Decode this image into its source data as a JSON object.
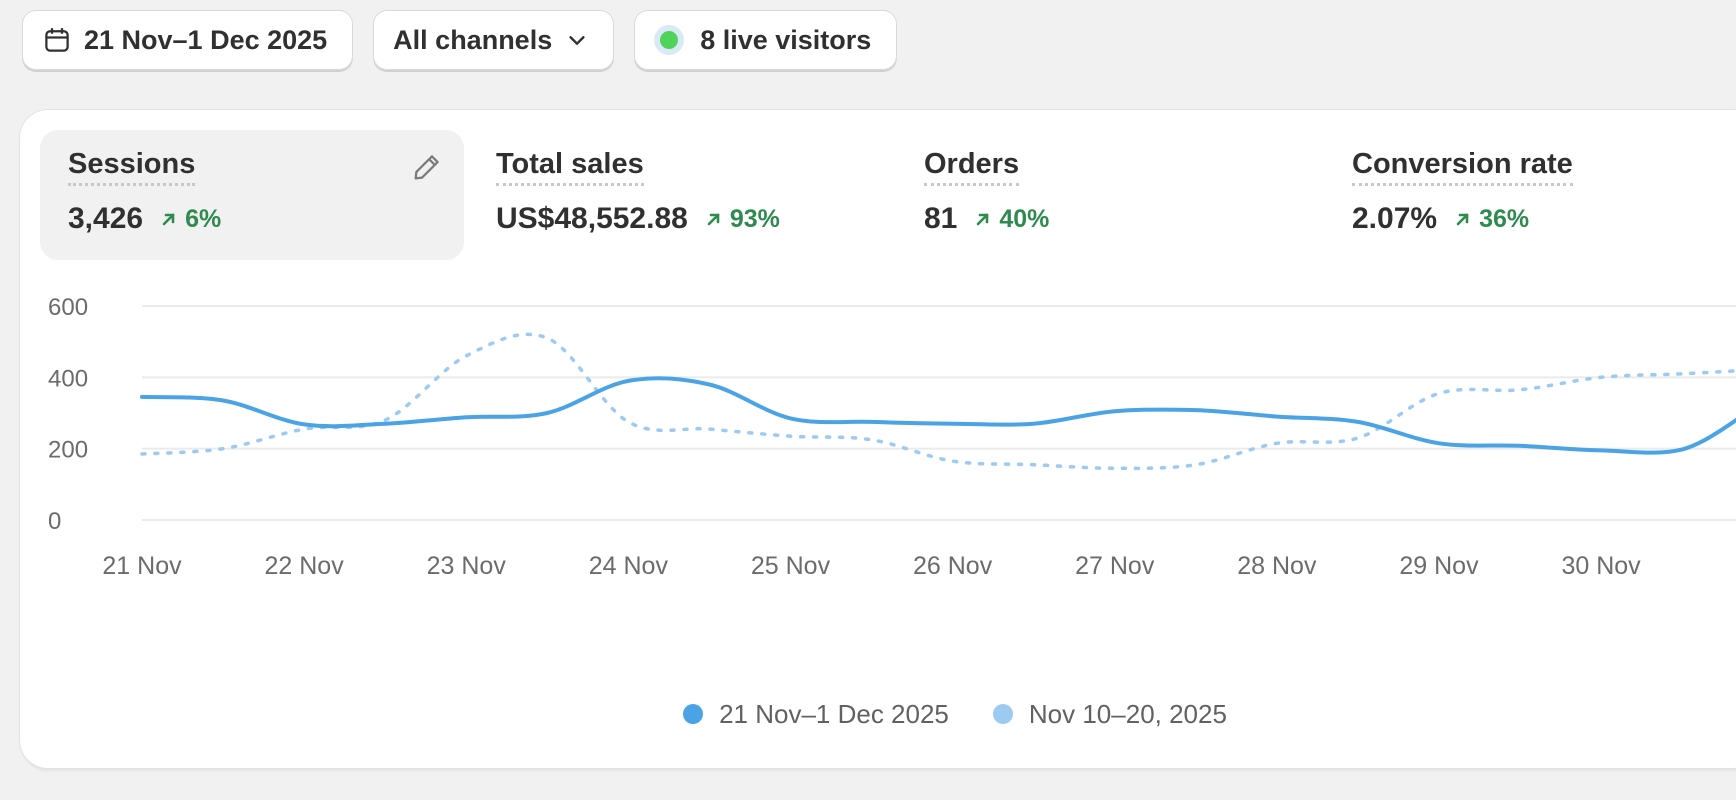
{
  "toolbar": {
    "date_range": "21 Nov–1 Dec 2025",
    "channels": "All channels",
    "live_visitors": "8 live visitors"
  },
  "metrics": [
    {
      "label": "Sessions",
      "value": "3,426",
      "delta": "6%",
      "active": true
    },
    {
      "label": "Total sales",
      "value": "US$48,552.88",
      "delta": "93%",
      "active": false
    },
    {
      "label": "Orders",
      "value": "81",
      "delta": "40%",
      "active": false
    },
    {
      "label": "Conversion rate",
      "value": "2.07%",
      "delta": "36%",
      "active": false
    }
  ],
  "chart_data": {
    "type": "line",
    "categories": [
      "21 Nov",
      "22 Nov",
      "23 Nov",
      "24 Nov",
      "25 Nov",
      "26 Nov",
      "27 Nov",
      "28 Nov",
      "29 Nov",
      "30 Nov"
    ],
    "x": [
      0,
      0.5,
      1,
      1.5,
      2,
      2.5,
      3,
      3.5,
      4,
      4.5,
      5,
      5.5,
      6,
      6.5,
      7,
      7.5,
      8,
      8.5,
      9,
      9.5,
      9.9
    ],
    "series": [
      {
        "name": "21 Nov–1 Dec 2025",
        "color": "#4aa3e4",
        "dashed": false,
        "values": [
          345,
          335,
          268,
          270,
          288,
          300,
          390,
          380,
          285,
          275,
          270,
          270,
          305,
          308,
          290,
          275,
          215,
          208,
          195,
          198,
          300
        ]
      },
      {
        "name": "Nov 10–20, 2025",
        "color": "#9ccaf0",
        "dashed": true,
        "values": [
          185,
          200,
          255,
          280,
          460,
          510,
          275,
          255,
          235,
          225,
          165,
          155,
          145,
          155,
          215,
          230,
          355,
          365,
          400,
          410,
          420
        ]
      }
    ],
    "yticks": [
      0,
      200,
      400,
      600
    ],
    "ylim": [
      0,
      600
    ],
    "xlim": [
      0,
      9.9
    ],
    "grid": true,
    "legend": "bottom"
  }
}
